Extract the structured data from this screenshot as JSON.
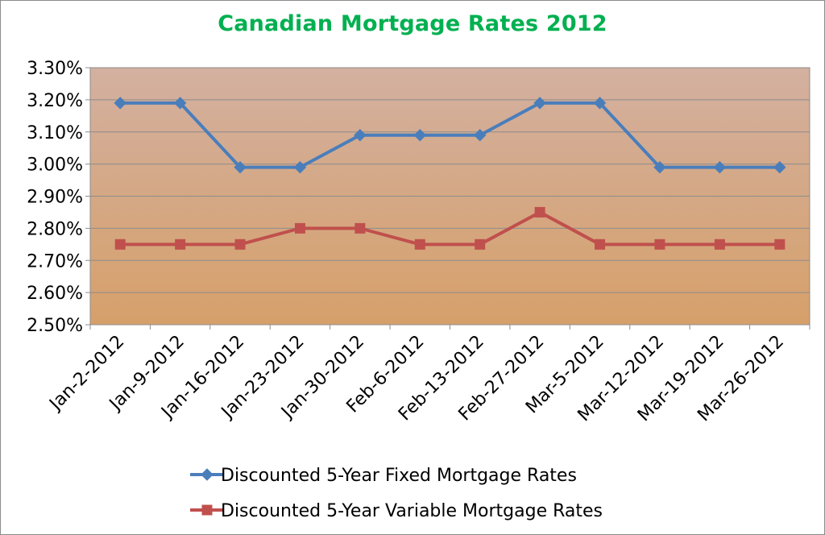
{
  "chart_data": {
    "type": "line",
    "title": "Canadian Mortgage Rates 2012",
    "xlabel": "",
    "ylabel": "",
    "categories": [
      "Jan-2-2012",
      "Jan-9-2012",
      "Jan-16-2012",
      "Jan-23-2012",
      "Jan-30-2012",
      "Feb-6-2012",
      "Feb-13-2012",
      "Feb-27-2012",
      "Mar-5-2012",
      "Mar-12-2012",
      "Mar-19-2012",
      "Mar-26-2012"
    ],
    "y_ticks": [
      "2.50%",
      "2.60%",
      "2.70%",
      "2.80%",
      "2.90%",
      "3.00%",
      "3.10%",
      "3.20%",
      "3.30%"
    ],
    "ylim": [
      2.5,
      3.3
    ],
    "grid": true,
    "legend_position": "bottom",
    "plot_background": [
      "#d3b0a0",
      "#d6a06a"
    ],
    "series": [
      {
        "name": "Discounted 5-Year Fixed Mortgage Rates",
        "color": "#4a7ebb",
        "marker": "diamond",
        "values": [
          3.19,
          3.19,
          2.99,
          2.99,
          3.09,
          3.09,
          3.09,
          3.19,
          3.19,
          2.99,
          2.99,
          2.99
        ]
      },
      {
        "name": "Discounted 5-Year Variable Mortgage Rates",
        "color": "#c0504d",
        "marker": "square",
        "values": [
          2.75,
          2.75,
          2.75,
          2.8,
          2.8,
          2.75,
          2.75,
          2.85,
          2.75,
          2.75,
          2.75,
          2.75
        ]
      }
    ]
  }
}
